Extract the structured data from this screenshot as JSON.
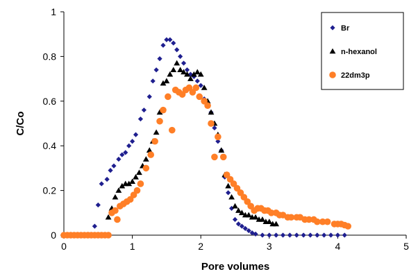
{
  "chart_data": {
    "type": "scatter",
    "title": "",
    "xlabel": "Pore volumes",
    "ylabel": "C/Co",
    "xlim": [
      0,
      5
    ],
    "ylim": [
      0,
      1
    ],
    "x_ticks": [
      "0",
      "1",
      "2",
      "3",
      "4",
      "5"
    ],
    "y_ticks": [
      "0",
      "0.2",
      "0.4",
      "0.6",
      "0.8",
      "1"
    ],
    "grid": false,
    "legend_position": "top-right",
    "series": [
      {
        "name": "Br",
        "marker": "diamond",
        "color": "#1f1f8f",
        "points": [
          [
            0.0,
            0.0
          ],
          [
            0.05,
            0.0
          ],
          [
            0.1,
            0.0
          ],
          [
            0.15,
            0.0
          ],
          [
            0.2,
            0.0
          ],
          [
            0.25,
            0.0
          ],
          [
            0.3,
            0.0
          ],
          [
            0.35,
            0.0
          ],
          [
            0.4,
            0.0
          ],
          [
            0.45,
            0.04
          ],
          [
            0.5,
            0.135
          ],
          [
            0.55,
            0.23
          ],
          [
            0.63,
            0.25
          ],
          [
            0.68,
            0.29
          ],
          [
            0.73,
            0.31
          ],
          [
            0.8,
            0.34
          ],
          [
            0.85,
            0.36
          ],
          [
            0.9,
            0.37
          ],
          [
            0.95,
            0.4
          ],
          [
            1.0,
            0.42
          ],
          [
            1.05,
            0.45
          ],
          [
            1.12,
            0.52
          ],
          [
            1.17,
            0.56
          ],
          [
            1.25,
            0.62
          ],
          [
            1.3,
            0.69
          ],
          [
            1.35,
            0.74
          ],
          [
            1.4,
            0.79
          ],
          [
            1.45,
            0.85
          ],
          [
            1.5,
            0.875
          ],
          [
            1.55,
            0.875
          ],
          [
            1.6,
            0.86
          ],
          [
            1.65,
            0.83
          ],
          [
            1.7,
            0.8
          ],
          [
            1.75,
            0.77
          ],
          [
            1.8,
            0.74
          ],
          [
            1.85,
            0.72
          ],
          [
            1.9,
            0.71
          ],
          [
            1.95,
            0.69
          ],
          [
            2.0,
            0.67
          ],
          [
            2.05,
            0.61
          ],
          [
            2.1,
            0.58
          ],
          [
            2.15,
            0.55
          ],
          [
            2.2,
            0.48
          ],
          [
            2.25,
            0.42
          ],
          [
            2.3,
            0.38
          ],
          [
            2.35,
            0.26
          ],
          [
            2.4,
            0.19
          ],
          [
            2.45,
            0.12
          ],
          [
            2.5,
            0.07
          ],
          [
            2.55,
            0.05
          ],
          [
            2.6,
            0.04
          ],
          [
            2.65,
            0.03
          ],
          [
            2.7,
            0.02
          ],
          [
            2.75,
            0.01
          ],
          [
            2.8,
            0.005
          ],
          [
            2.9,
            0.0
          ],
          [
            3.0,
            0.0
          ],
          [
            3.1,
            0.0
          ],
          [
            3.2,
            0.0
          ],
          [
            3.3,
            0.0
          ],
          [
            3.4,
            0.0
          ],
          [
            3.5,
            0.0
          ],
          [
            3.6,
            0.0
          ],
          [
            3.7,
            0.0
          ],
          [
            3.8,
            0.0
          ],
          [
            3.9,
            0.0
          ],
          [
            4.0,
            0.0
          ],
          [
            4.1,
            0.0
          ]
        ]
      },
      {
        "name": "n-hexanol",
        "marker": "triangle",
        "color": "#000000",
        "points": [
          [
            0.0,
            0.0
          ],
          [
            0.05,
            0.0
          ],
          [
            0.1,
            0.0
          ],
          [
            0.15,
            0.0
          ],
          [
            0.2,
            0.0
          ],
          [
            0.25,
            0.0
          ],
          [
            0.3,
            0.0
          ],
          [
            0.35,
            0.0
          ],
          [
            0.4,
            0.0
          ],
          [
            0.45,
            0.0
          ],
          [
            0.5,
            0.0
          ],
          [
            0.55,
            0.0
          ],
          [
            0.6,
            0.0
          ],
          [
            0.65,
            0.08
          ],
          [
            0.7,
            0.12
          ],
          [
            0.75,
            0.17
          ],
          [
            0.8,
            0.2
          ],
          [
            0.85,
            0.22
          ],
          [
            0.9,
            0.23
          ],
          [
            0.95,
            0.23
          ],
          [
            1.0,
            0.24
          ],
          [
            1.05,
            0.26
          ],
          [
            1.1,
            0.28
          ],
          [
            1.15,
            0.31
          ],
          [
            1.2,
            0.34
          ],
          [
            1.25,
            0.38
          ],
          [
            1.3,
            0.42
          ],
          [
            1.35,
            0.46
          ],
          [
            1.4,
            0.55
          ],
          [
            1.45,
            0.68
          ],
          [
            1.5,
            0.69
          ],
          [
            1.55,
            0.72
          ],
          [
            1.6,
            0.74
          ],
          [
            1.65,
            0.77
          ],
          [
            1.7,
            0.74
          ],
          [
            1.75,
            0.73
          ],
          [
            1.8,
            0.72
          ],
          [
            1.85,
            0.7
          ],
          [
            1.9,
            0.72
          ],
          [
            1.95,
            0.73
          ],
          [
            2.0,
            0.72
          ],
          [
            2.05,
            0.66
          ],
          [
            2.1,
            0.6
          ],
          [
            2.15,
            0.55
          ],
          [
            2.2,
            0.5
          ],
          [
            2.25,
            0.45
          ],
          [
            2.3,
            0.38
          ],
          [
            2.35,
            0.27
          ],
          [
            2.4,
            0.22
          ],
          [
            2.45,
            0.17
          ],
          [
            2.5,
            0.13
          ],
          [
            2.55,
            0.11
          ],
          [
            2.6,
            0.1
          ],
          [
            2.65,
            0.09
          ],
          [
            2.7,
            0.09
          ],
          [
            2.75,
            0.08
          ],
          [
            2.8,
            0.08
          ],
          [
            2.85,
            0.07
          ],
          [
            2.9,
            0.07
          ],
          [
            2.95,
            0.06
          ],
          [
            3.0,
            0.06
          ],
          [
            3.05,
            0.05
          ],
          [
            3.1,
            0.05
          ]
        ]
      },
      {
        "name": "22dm3p",
        "marker": "circle",
        "color": "#ff7f27",
        "points": [
          [
            0.0,
            0.0
          ],
          [
            0.05,
            0.0
          ],
          [
            0.1,
            0.0
          ],
          [
            0.15,
            0.0
          ],
          [
            0.2,
            0.0
          ],
          [
            0.25,
            0.0
          ],
          [
            0.3,
            0.0
          ],
          [
            0.35,
            0.0
          ],
          [
            0.4,
            0.0
          ],
          [
            0.45,
            0.0
          ],
          [
            0.5,
            0.0
          ],
          [
            0.55,
            0.0
          ],
          [
            0.6,
            0.0
          ],
          [
            0.65,
            0.0
          ],
          [
            0.7,
            0.1
          ],
          [
            0.75,
            0.11
          ],
          [
            0.78,
            0.07
          ],
          [
            0.82,
            0.13
          ],
          [
            0.87,
            0.14
          ],
          [
            0.92,
            0.15
          ],
          [
            0.97,
            0.16
          ],
          [
            1.02,
            0.18
          ],
          [
            1.07,
            0.2
          ],
          [
            1.12,
            0.23
          ],
          [
            1.2,
            0.3
          ],
          [
            1.27,
            0.36
          ],
          [
            1.33,
            0.42
          ],
          [
            1.4,
            0.51
          ],
          [
            1.45,
            0.56
          ],
          [
            1.52,
            0.62
          ],
          [
            1.58,
            0.47
          ],
          [
            1.63,
            0.65
          ],
          [
            1.68,
            0.64
          ],
          [
            1.73,
            0.63
          ],
          [
            1.78,
            0.65
          ],
          [
            1.83,
            0.66
          ],
          [
            1.88,
            0.64
          ],
          [
            1.93,
            0.66
          ],
          [
            1.98,
            0.62
          ],
          [
            2.05,
            0.6
          ],
          [
            2.1,
            0.58
          ],
          [
            2.15,
            0.5
          ],
          [
            2.2,
            0.35
          ],
          [
            2.25,
            0.44
          ],
          [
            2.33,
            0.35
          ],
          [
            2.38,
            0.27
          ],
          [
            2.43,
            0.25
          ],
          [
            2.48,
            0.23
          ],
          [
            2.53,
            0.21
          ],
          [
            2.58,
            0.19
          ],
          [
            2.63,
            0.17
          ],
          [
            2.68,
            0.15
          ],
          [
            2.73,
            0.13
          ],
          [
            2.78,
            0.11
          ],
          [
            2.83,
            0.12
          ],
          [
            2.88,
            0.12
          ],
          [
            2.93,
            0.11
          ],
          [
            2.98,
            0.11
          ],
          [
            3.03,
            0.1
          ],
          [
            3.1,
            0.1
          ],
          [
            3.15,
            0.09
          ],
          [
            3.2,
            0.09
          ],
          [
            3.27,
            0.08
          ],
          [
            3.32,
            0.08
          ],
          [
            3.4,
            0.08
          ],
          [
            3.45,
            0.08
          ],
          [
            3.52,
            0.07
          ],
          [
            3.58,
            0.07
          ],
          [
            3.65,
            0.07
          ],
          [
            3.7,
            0.06
          ],
          [
            3.78,
            0.06
          ],
          [
            3.85,
            0.06
          ],
          [
            3.95,
            0.05
          ],
          [
            4.0,
            0.05
          ],
          [
            4.05,
            0.05
          ],
          [
            4.1,
            0.045
          ],
          [
            4.15,
            0.04
          ]
        ]
      }
    ]
  }
}
